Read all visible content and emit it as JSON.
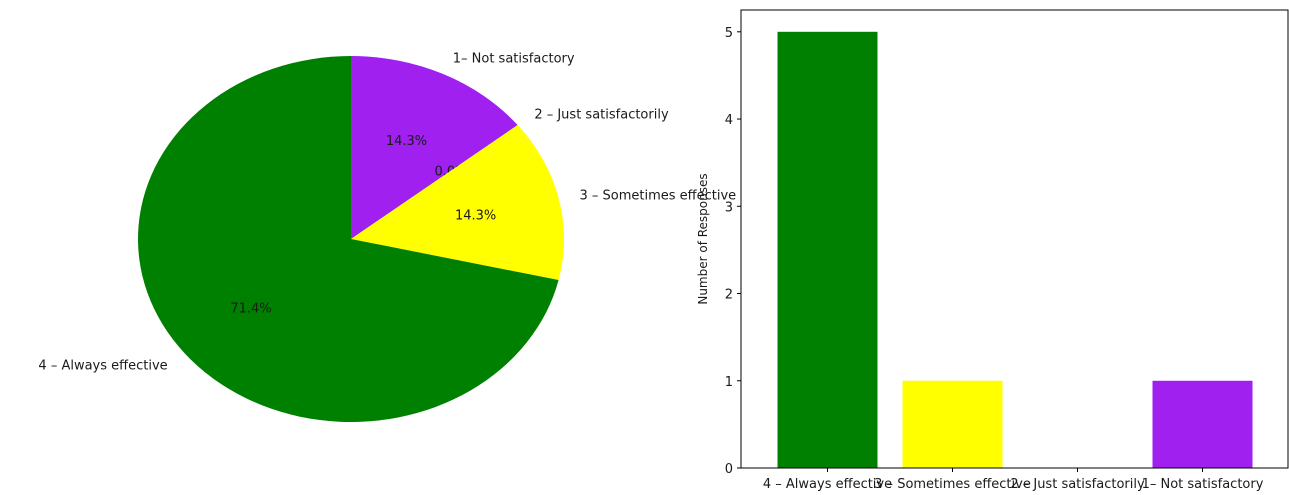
{
  "chart_data": [
    {
      "type": "pie",
      "slices": [
        {
          "label": "1– Not satisfactory",
          "value": 14.3,
          "pct_label": "14.3%",
          "color": "#a020f0"
        },
        {
          "label": "2 – Just satisfactorily",
          "value": 0.0,
          "pct_label": "0.0%",
          "color": "#0000ff"
        },
        {
          "label": "3 – Sometimes effective",
          "value": 14.3,
          "pct_label": "14.3%",
          "color": "#ffff00"
        },
        {
          "label": "4 – Always effective",
          "value": 71.4,
          "pct_label": "71.4%",
          "color": "#008000"
        }
      ],
      "start_angle_deg": 90,
      "direction": "clockwise"
    },
    {
      "type": "bar",
      "categories": [
        "4 – Always effective",
        "3 – Sometimes effective",
        "2 – Just satisfactorily",
        "1– Not satisfactory"
      ],
      "values": [
        5,
        1,
        0,
        1
      ],
      "colors": [
        "#008000",
        "#ffff00",
        "#0000ff",
        "#a020f0"
      ],
      "xlabel": "",
      "ylabel": "Number of Responses",
      "ylim": [
        0,
        5.25
      ],
      "yticks": [
        "0",
        "1",
        "2",
        "3",
        "4",
        "5"
      ],
      "grid": false
    }
  ]
}
